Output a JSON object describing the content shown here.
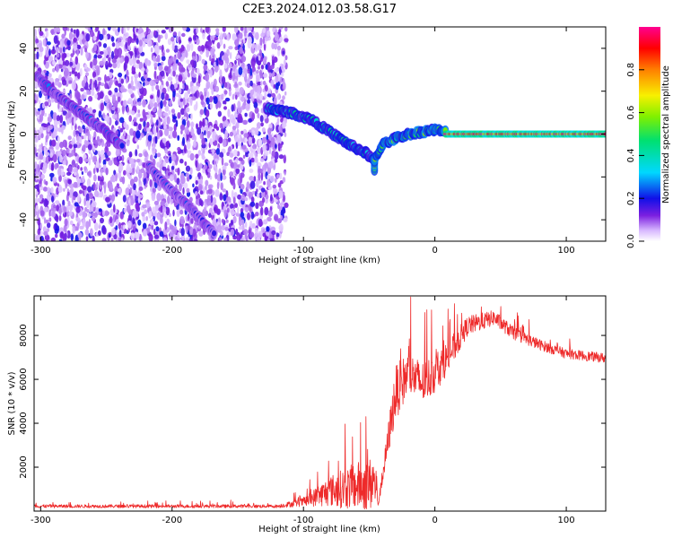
{
  "title": "C2E3.2024.012.03.58.G17",
  "chart_data": [
    {
      "type": "heatmap",
      "xlabel": "Height of straight line (km)",
      "ylabel": "Frequency (Hz)",
      "xlim": [
        -305,
        130
      ],
      "ylim": [
        -50,
        50
      ],
      "x_ticks": [
        -300,
        -200,
        -100,
        0,
        100
      ],
      "y_ticks": [
        -40,
        -20,
        0,
        20,
        40
      ],
      "colorbar": {
        "label": "Normalized spectral amplitude",
        "range": [
          0,
          1
        ],
        "ticks": [
          0.0,
          0.2,
          0.4,
          0.6,
          0.8
        ]
      },
      "noise_region_x": [
        -305,
        -113
      ],
      "tracks": [
        {
          "amplitude": 0.25,
          "points": [
            [
              -303,
              27
            ],
            [
              -290,
              19
            ],
            [
              -270,
              10
            ],
            [
              -250,
              1
            ],
            [
              -238,
              -6
            ]
          ]
        },
        {
          "amplitude": 0.22,
          "points": [
            [
              -218,
              -15
            ],
            [
              -205,
              -24
            ],
            [
              -190,
              -32
            ],
            [
              -175,
              -42
            ],
            [
              -168,
              -47
            ]
          ]
        },
        {
          "amplitude": 0.45,
          "points": [
            [
              -128,
              12
            ],
            [
              -110,
              10
            ],
            [
              -95,
              7
            ],
            [
              -80,
              1
            ],
            [
              -65,
              -5
            ],
            [
              -52,
              -9
            ],
            [
              -46,
              -13
            ]
          ]
        },
        {
          "amplitude": 0.55,
          "points": [
            [
              -46,
              -18
            ],
            [
              -46,
              -12
            ],
            [
              -40,
              -5
            ],
            [
              -30,
              -2
            ],
            [
              -20,
              0
            ],
            [
              -10,
              1
            ],
            [
              0,
              2
            ],
            [
              8,
              1
            ]
          ]
        },
        {
          "amplitude": 0.95,
          "points": [
            [
              8,
              0
            ],
            [
              40,
              0
            ],
            [
              80,
              0
            ],
            [
              130,
              0
            ]
          ]
        }
      ]
    },
    {
      "type": "line",
      "xlabel": "Height of straight line (km)",
      "ylabel": "SNR (10 * v/v)",
      "xlim": [
        -305,
        130
      ],
      "ylim": [
        0,
        9800
      ],
      "x_ticks": [
        -300,
        -200,
        -100,
        0,
        100
      ],
      "y_ticks": [
        2000,
        4000,
        6000,
        8000
      ],
      "color": "#ee2a2a",
      "envelope": [
        {
          "x": -305,
          "base": 200,
          "spread": 150
        },
        {
          "x": -120,
          "base": 200,
          "spread": 150
        },
        {
          "x": -100,
          "base": 350,
          "spread": 400
        },
        {
          "x": -80,
          "base": 700,
          "spread": 1400
        },
        {
          "x": -60,
          "base": 800,
          "spread": 2200
        },
        {
          "x": -45,
          "base": 900,
          "spread": 2500
        },
        {
          "x": -43,
          "base": 300,
          "spread": 200
        },
        {
          "x": -30,
          "base": 5000,
          "spread": 2500
        },
        {
          "x": -20,
          "base": 6000,
          "spread": 2000
        },
        {
          "x": -10,
          "base": 5500,
          "spread": 2000
        },
        {
          "x": 0,
          "base": 6000,
          "spread": 1800
        },
        {
          "x": 10,
          "base": 6800,
          "spread": 1500
        },
        {
          "x": 25,
          "base": 8300,
          "spread": 900
        },
        {
          "x": 45,
          "base": 8700,
          "spread": 700
        },
        {
          "x": 60,
          "base": 8000,
          "spread": 600
        },
        {
          "x": 80,
          "base": 7500,
          "spread": 500
        },
        {
          "x": 100,
          "base": 7100,
          "spread": 450
        },
        {
          "x": 130,
          "base": 6900,
          "spread": 450
        }
      ]
    }
  ]
}
